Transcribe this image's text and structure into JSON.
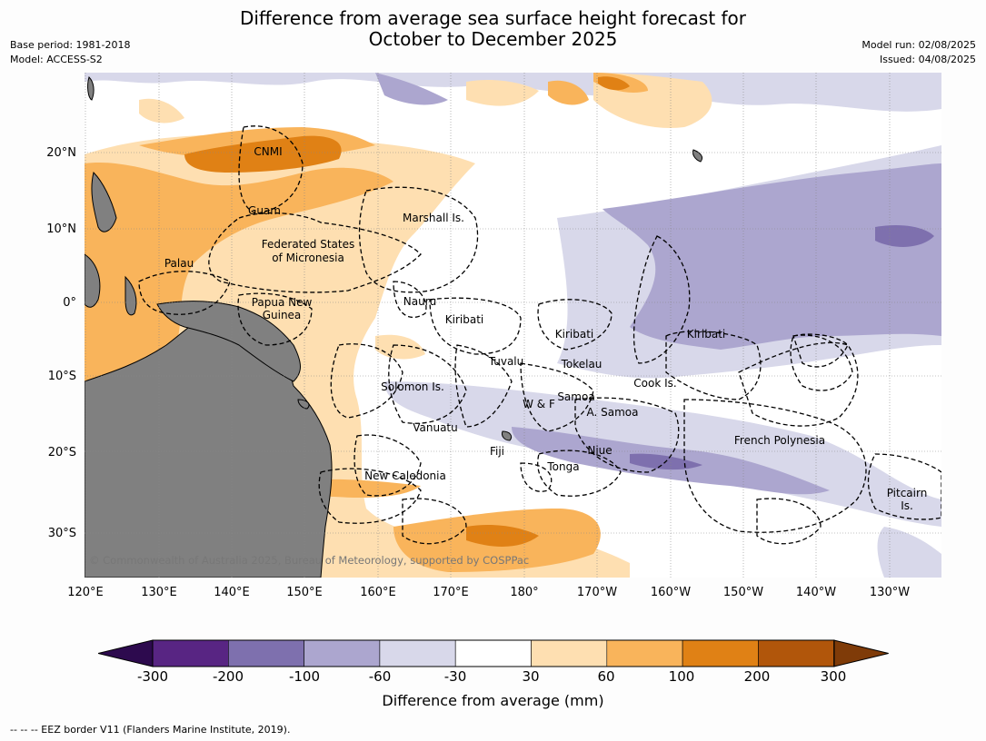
{
  "title": {
    "line1": "Difference from average sea surface height forecast for",
    "line2": "October to December 2025"
  },
  "meta_left": {
    "base_period": "Base period: 1981-2018",
    "model": "Model: ACCESS-S2"
  },
  "meta_right": {
    "model_run": "Model run: 02/08/2025",
    "issued": "Issued: 04/08/2025"
  },
  "lat_labels": [
    "20°N",
    "10°N",
    "0°",
    "10°S",
    "20°S",
    "30°S"
  ],
  "lon_labels": [
    "120°E",
    "130°E",
    "140°E",
    "150°E",
    "160°E",
    "170°E",
    "180°",
    "170°W",
    "160°W",
    "150°W",
    "140°W",
    "130°W"
  ],
  "place_labels": [
    "CNMI",
    "Guam",
    "Marshall Is.",
    "Federated States",
    "of Micronesia",
    "Palau",
    "Papua New",
    "Guinea",
    "Nauru",
    "Kiribati",
    "Kiribati",
    "Kiribati",
    "Tuvalu",
    "Tokelau",
    "Solomon Is.",
    "W & F",
    "Samoa",
    "Cook Is.",
    "A. Samoa",
    "Vanuatu",
    "Fiji",
    "Niue",
    "Tonga",
    "French Polynesia",
    "New Caledonia",
    "Pitcairn",
    "Is."
  ],
  "copyright": "© Commonwealth of Australia 2025, Bureau of Meteorology, supported by COSPPac",
  "colorbar": {
    "ticks": [
      "-300",
      "-200",
      "-100",
      "-60",
      "-30",
      "30",
      "60",
      "100",
      "200",
      "300"
    ],
    "colors": [
      "#2d0a4e",
      "#582583",
      "#7e70ae",
      "#aca6cf",
      "#d8d8ea",
      "#ffffff",
      "#fedfb1",
      "#f9b45b",
      "#e08115",
      "#b1560b",
      "#7f3b08"
    ],
    "label": "Difference from average (mm)"
  },
  "footnote": "--  --  -- EEZ border V11 (Flanders Marine Institute, 2019).",
  "land_color": "#808080"
}
